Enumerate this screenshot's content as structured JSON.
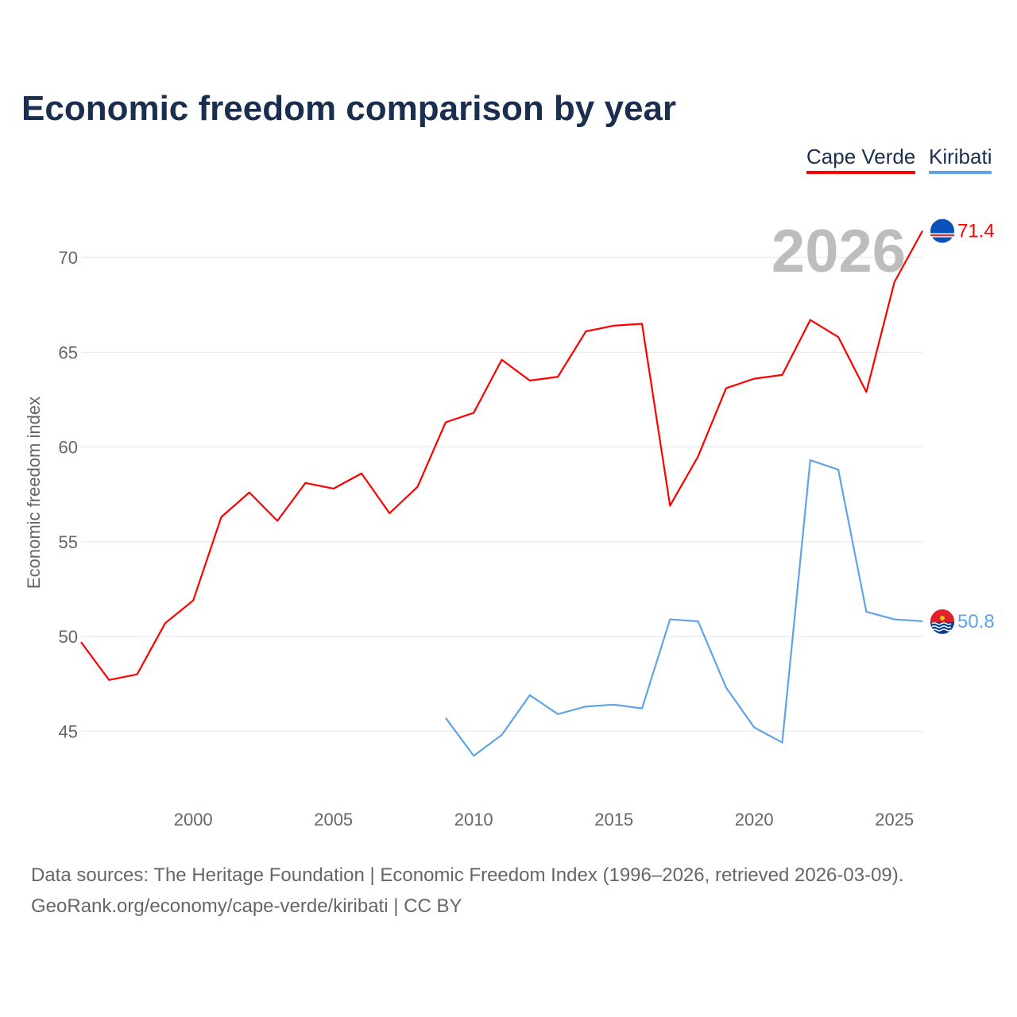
{
  "title": "Economic freedom comparison by year",
  "legend": [
    {
      "name": "Cape Verde",
      "color": "#ff0000"
    },
    {
      "name": "Kiribati",
      "color": "#5fa3e8"
    }
  ],
  "year_label": "2026",
  "sources": {
    "line1": "Data sources: The Heritage Foundation | Economic Freedom Index (1996–2026, retrieved 2026-03-09).",
    "line2": "GeoRank.org/economy/cape-verde/kiribati | CC BY"
  },
  "chart_data": {
    "type": "line",
    "title": "Economic freedom comparison by year",
    "xlabel": "",
    "ylabel": "Economic freedom index",
    "xlim": [
      1996,
      2026
    ],
    "ylim": [
      41,
      73
    ],
    "xticks": [
      2000,
      2005,
      2010,
      2015,
      2020,
      2025
    ],
    "yticks": [
      45,
      50,
      55,
      60,
      65,
      70
    ],
    "grid": true,
    "legend_position": "top-right",
    "series": [
      {
        "name": "Cape Verde",
        "color": "#ff0000",
        "end_label": "71.4",
        "x": [
          1996,
          1997,
          1998,
          1999,
          2000,
          2001,
          2002,
          2003,
          2004,
          2005,
          2006,
          2007,
          2008,
          2009,
          2010,
          2011,
          2012,
          2013,
          2014,
          2015,
          2016,
          2017,
          2018,
          2019,
          2020,
          2021,
          2022,
          2023,
          2024,
          2025,
          2026
        ],
        "values": [
          49.7,
          47.7,
          48.0,
          50.7,
          51.9,
          56.3,
          57.6,
          56.1,
          58.1,
          57.8,
          58.6,
          56.5,
          57.9,
          61.3,
          61.8,
          64.6,
          63.5,
          63.7,
          66.1,
          66.4,
          66.5,
          56.9,
          59.5,
          63.1,
          63.6,
          63.8,
          66.7,
          65.8,
          62.9,
          68.7,
          71.4
        ]
      },
      {
        "name": "Kiribati",
        "color": "#5fa3e8",
        "end_label": "50.8",
        "x": [
          2009,
          2010,
          2011,
          2012,
          2013,
          2014,
          2015,
          2016,
          2017,
          2018,
          2019,
          2020,
          2021,
          2022,
          2023,
          2024,
          2025,
          2026
        ],
        "values": [
          45.7,
          43.7,
          44.8,
          46.9,
          45.9,
          46.3,
          46.4,
          46.2,
          50.9,
          50.8,
          47.3,
          45.2,
          44.4,
          59.3,
          58.8,
          51.3,
          50.9,
          50.8
        ]
      }
    ]
  }
}
